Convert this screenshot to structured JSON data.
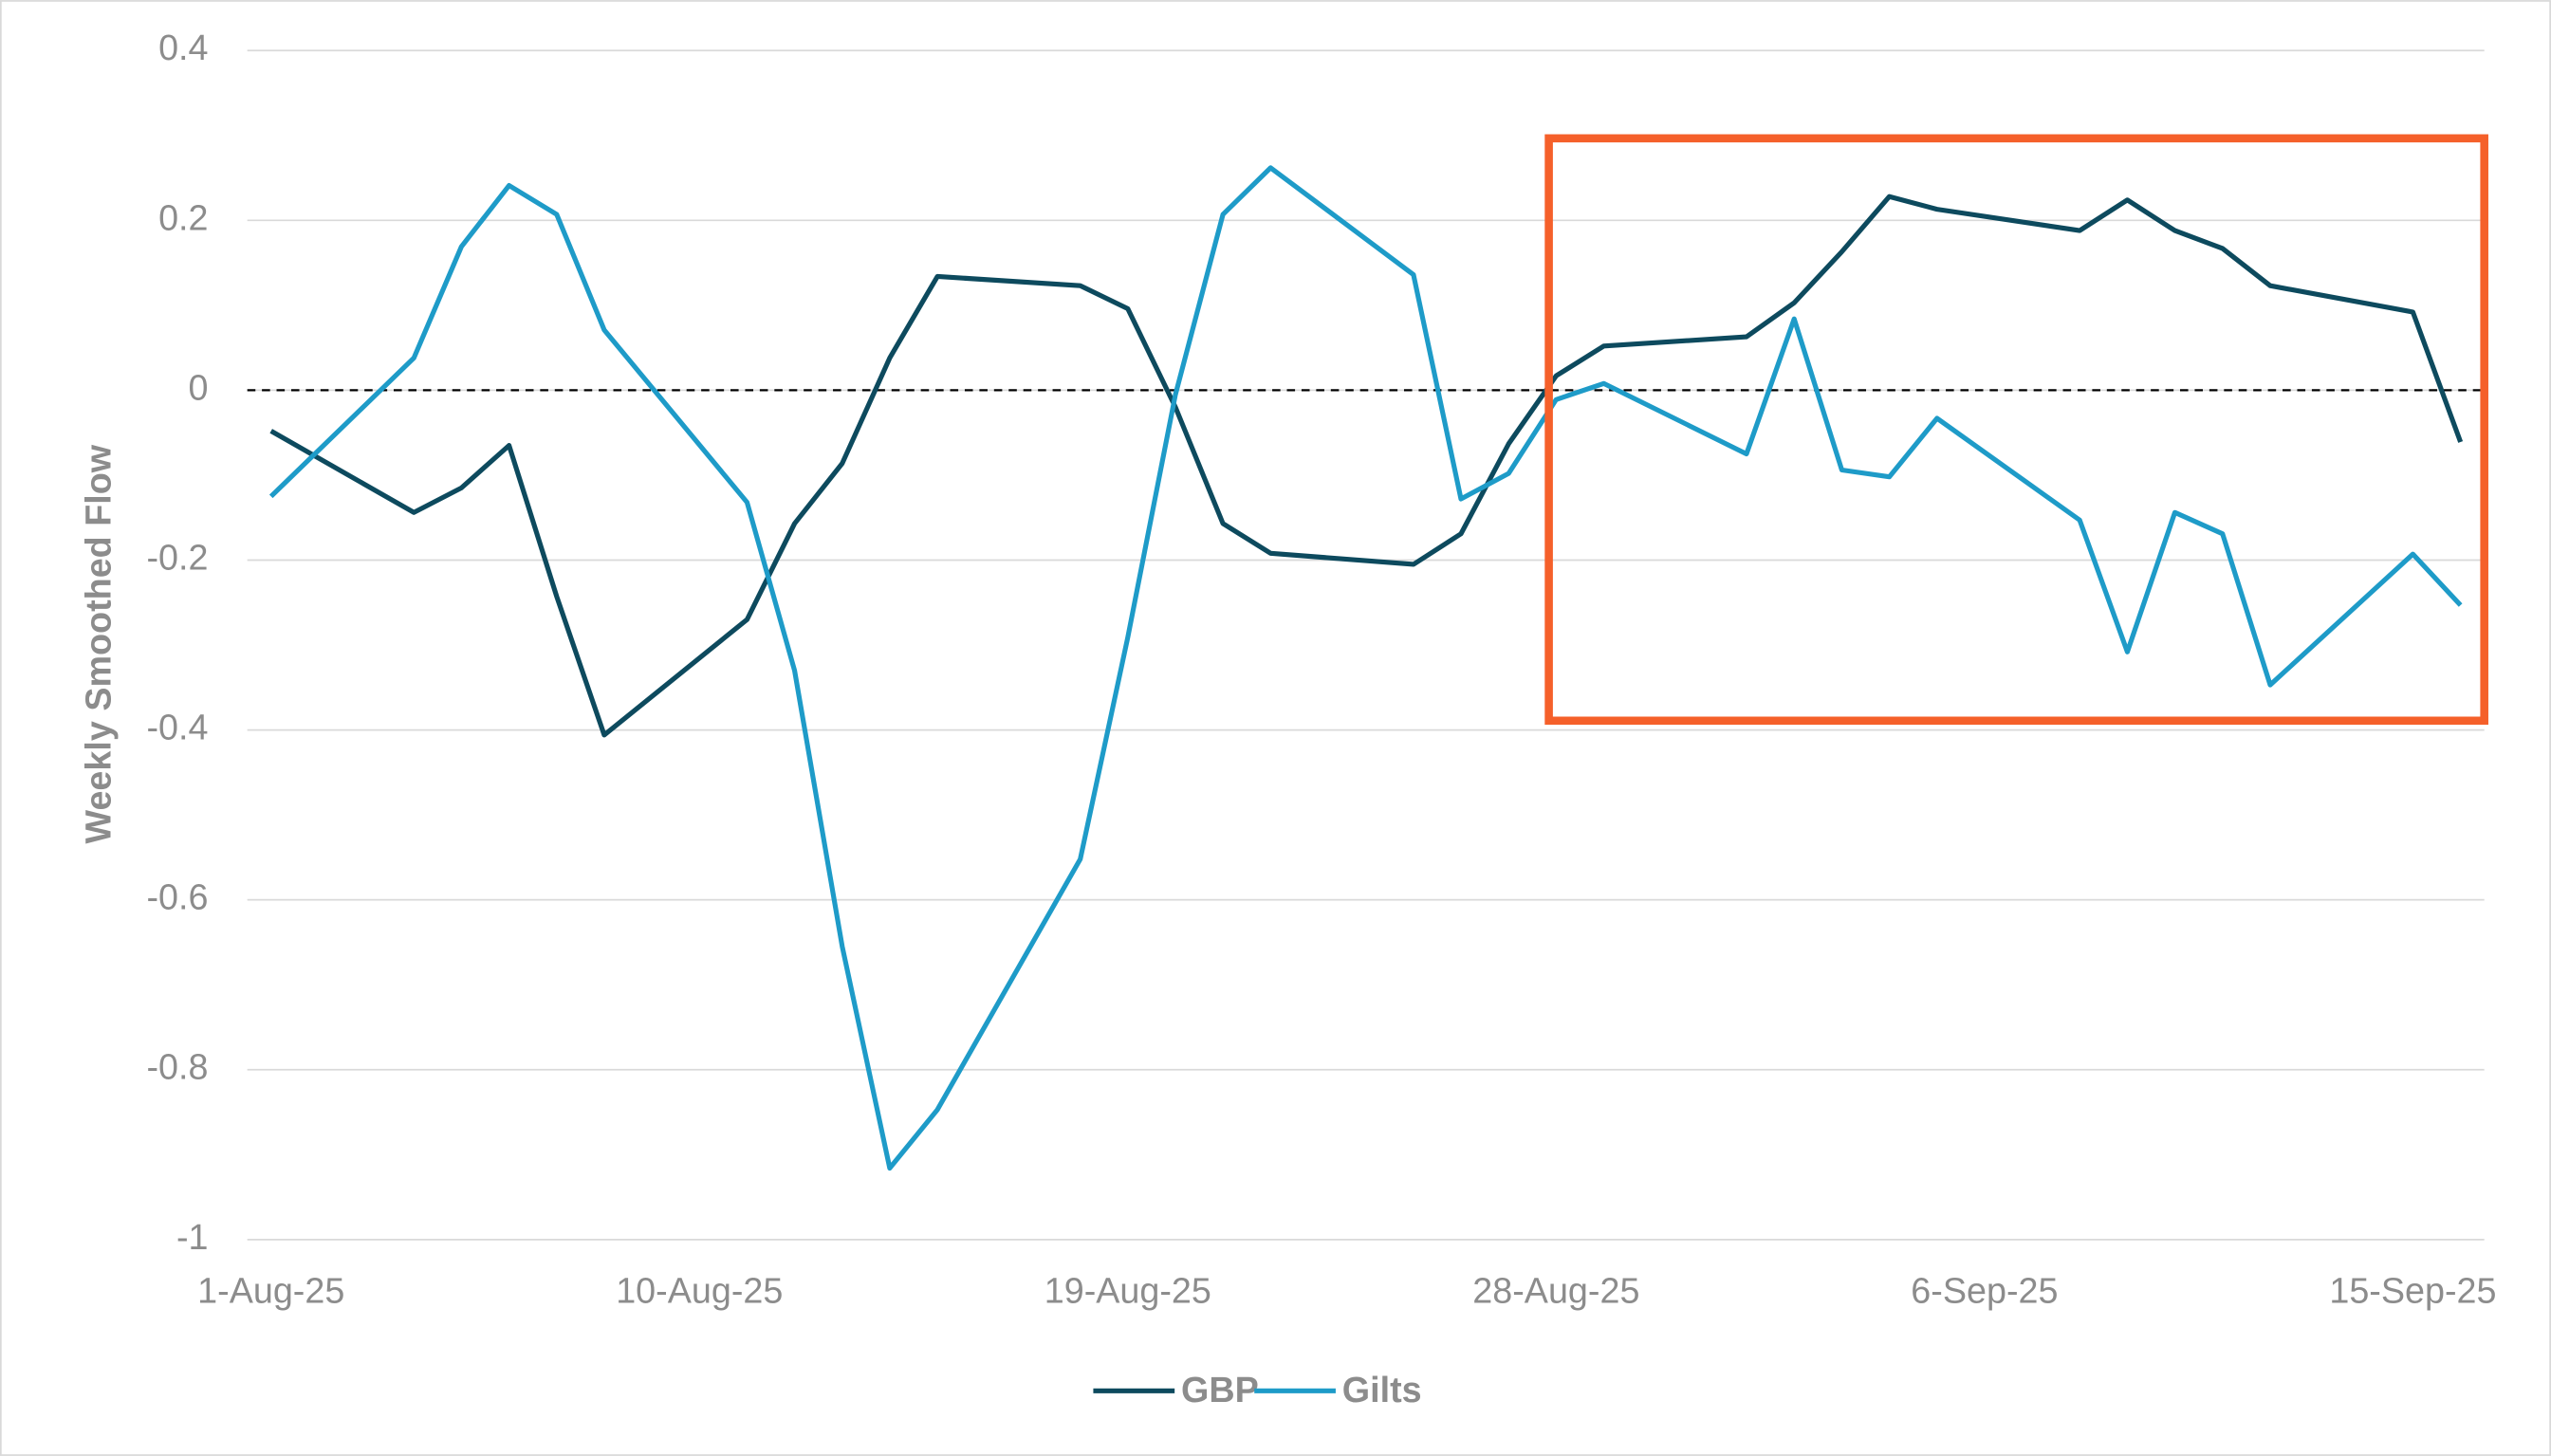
{
  "chart_data": {
    "type": "line",
    "y_label": "Weekly Smoothed Flow",
    "x": [
      "1-Aug-25",
      "4-Aug-25",
      "5-Aug-25",
      "6-Aug-25",
      "7-Aug-25",
      "8-Aug-25",
      "11-Aug-25",
      "12-Aug-25",
      "13-Aug-25",
      "14-Aug-25",
      "15-Aug-25",
      "18-Aug-25",
      "19-Aug-25",
      "20-Aug-25",
      "21-Aug-25",
      "22-Aug-25",
      "25-Aug-25",
      "26-Aug-25",
      "27-Aug-25",
      "28-Aug-25",
      "29-Aug-25",
      "1-Sep-25",
      "2-Sep-25",
      "3-Sep-25",
      "4-Sep-25",
      "5-Sep-25",
      "8-Sep-25",
      "9-Sep-25",
      "10-Sep-25",
      "11-Sep-25",
      "12-Sep-25",
      "15-Sep-25",
      "16-Sep-25"
    ],
    "series": [
      {
        "name": "GBP",
        "color": "#0d4a5e",
        "values": [
          -0.048,
          -0.144,
          -0.115,
          -0.065,
          -0.243,
          -0.406,
          -0.27,
          -0.157,
          -0.086,
          0.038,
          0.134,
          0.123,
          0.096,
          -0.02,
          -0.157,
          -0.192,
          -0.205,
          -0.169,
          -0.063,
          0.017,
          0.052,
          0.063,
          0.103,
          0.163,
          0.228,
          0.213,
          0.188,
          0.224,
          0.188,
          0.167,
          0.123,
          0.092,
          -0.061
        ]
      },
      {
        "name": "Gilts",
        "color": "#1e9bc8",
        "values": [
          -0.125,
          0.038,
          0.169,
          0.241,
          0.207,
          0.071,
          -0.132,
          -0.33,
          -0.655,
          -0.916,
          -0.847,
          -0.552,
          -0.291,
          -0.005,
          0.207,
          0.262,
          0.136,
          -0.128,
          -0.098,
          -0.011,
          0.008,
          -0.075,
          0.084,
          -0.094,
          -0.102,
          -0.033,
          -0.153,
          -0.308,
          -0.144,
          -0.169,
          -0.347,
          -0.193,
          -0.253
        ]
      }
    ],
    "xlim": [
      "1-Aug-25",
      "16-Sep-25"
    ],
    "xticks": [
      "1-Aug-25",
      "10-Aug-25",
      "19-Aug-25",
      "28-Aug-25",
      "6-Sep-25",
      "15-Sep-25"
    ],
    "ylim": [
      -1,
      0.4
    ],
    "yticks": [
      0.4,
      0.2,
      0,
      -0.2,
      -0.4,
      -0.6,
      -0.8,
      -1
    ],
    "reference_line": 0,
    "grid": true,
    "legend": "bottom"
  }
}
